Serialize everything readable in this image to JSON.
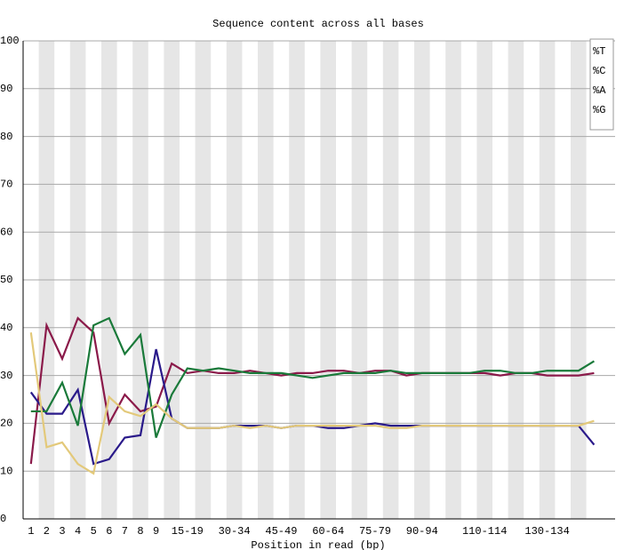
{
  "chart_data": {
    "type": "line",
    "title": "Sequence content across all bases",
    "x_label": "Position in read (bp)",
    "categories": [
      "1",
      "2",
      "3",
      "4",
      "5",
      "6",
      "7",
      "8",
      "9",
      null,
      "15-19",
      null,
      null,
      "30-34",
      null,
      null,
      "45-49",
      null,
      null,
      "60-64",
      null,
      null,
      "75-79",
      null,
      null,
      "90-94",
      null,
      null,
      null,
      "110-114",
      null,
      null,
      null,
      "130-134",
      null,
      null,
      null
    ],
    "series": [
      {
        "name": "%T",
        "color": "#8b1a4a",
        "values": [
          11.5,
          40.5,
          33.5,
          42,
          39,
          20,
          26,
          22.5,
          23.5,
          32.5,
          30.5,
          31,
          30.5,
          30.5,
          31,
          30.5,
          30,
          30.5,
          30.5,
          31,
          31,
          30.5,
          31,
          31,
          30,
          30.5,
          30.5,
          30.5,
          30.5,
          30.5,
          30,
          30.5,
          30.5,
          30,
          30,
          30,
          30.5
        ]
      },
      {
        "name": "%C",
        "color": "#2a1a8a",
        "values": [
          26.5,
          22,
          22,
          27,
          11.5,
          12.5,
          17,
          17.5,
          35.5,
          21,
          19,
          19,
          19,
          19.5,
          19.5,
          19.5,
          19,
          19.5,
          19.5,
          19,
          19,
          19.5,
          20,
          19.5,
          19.5,
          19.5,
          19.5,
          19.5,
          19.5,
          19.5,
          19.5,
          19.5,
          19.5,
          19.5,
          19.5,
          19.5,
          15.5
        ]
      },
      {
        "name": "%A",
        "color": "#1a7a3a",
        "values": [
          22.5,
          22.5,
          28.5,
          19.5,
          40.5,
          42,
          34.5,
          38.5,
          17,
          26,
          31.5,
          31,
          31.5,
          31,
          30.5,
          30.5,
          30.5,
          30,
          29.5,
          30,
          30.5,
          30.5,
          30.5,
          31,
          30.5,
          30.5,
          30.5,
          30.5,
          30.5,
          31,
          31,
          30.5,
          30.5,
          31,
          31,
          31,
          33
        ]
      },
      {
        "name": "%G",
        "color": "#e3c97a",
        "values": [
          39,
          15,
          16,
          11.5,
          9.5,
          25.5,
          22.5,
          21.5,
          24,
          21,
          19,
          19,
          19,
          19.5,
          19,
          19.5,
          19,
          19.5,
          19.5,
          19.5,
          19.5,
          19.5,
          19.5,
          19,
          19,
          19.5,
          19.5,
          19.5,
          19.5,
          19.5,
          19.5,
          19.5,
          19.5,
          19.5,
          19.5,
          19.5,
          20.5
        ]
      }
    ],
    "ylim": [
      0,
      100
    ],
    "yticks": [
      0,
      10,
      20,
      30,
      40,
      50,
      60,
      70,
      80,
      90,
      100
    ],
    "grid": true,
    "legend": "top-right"
  }
}
